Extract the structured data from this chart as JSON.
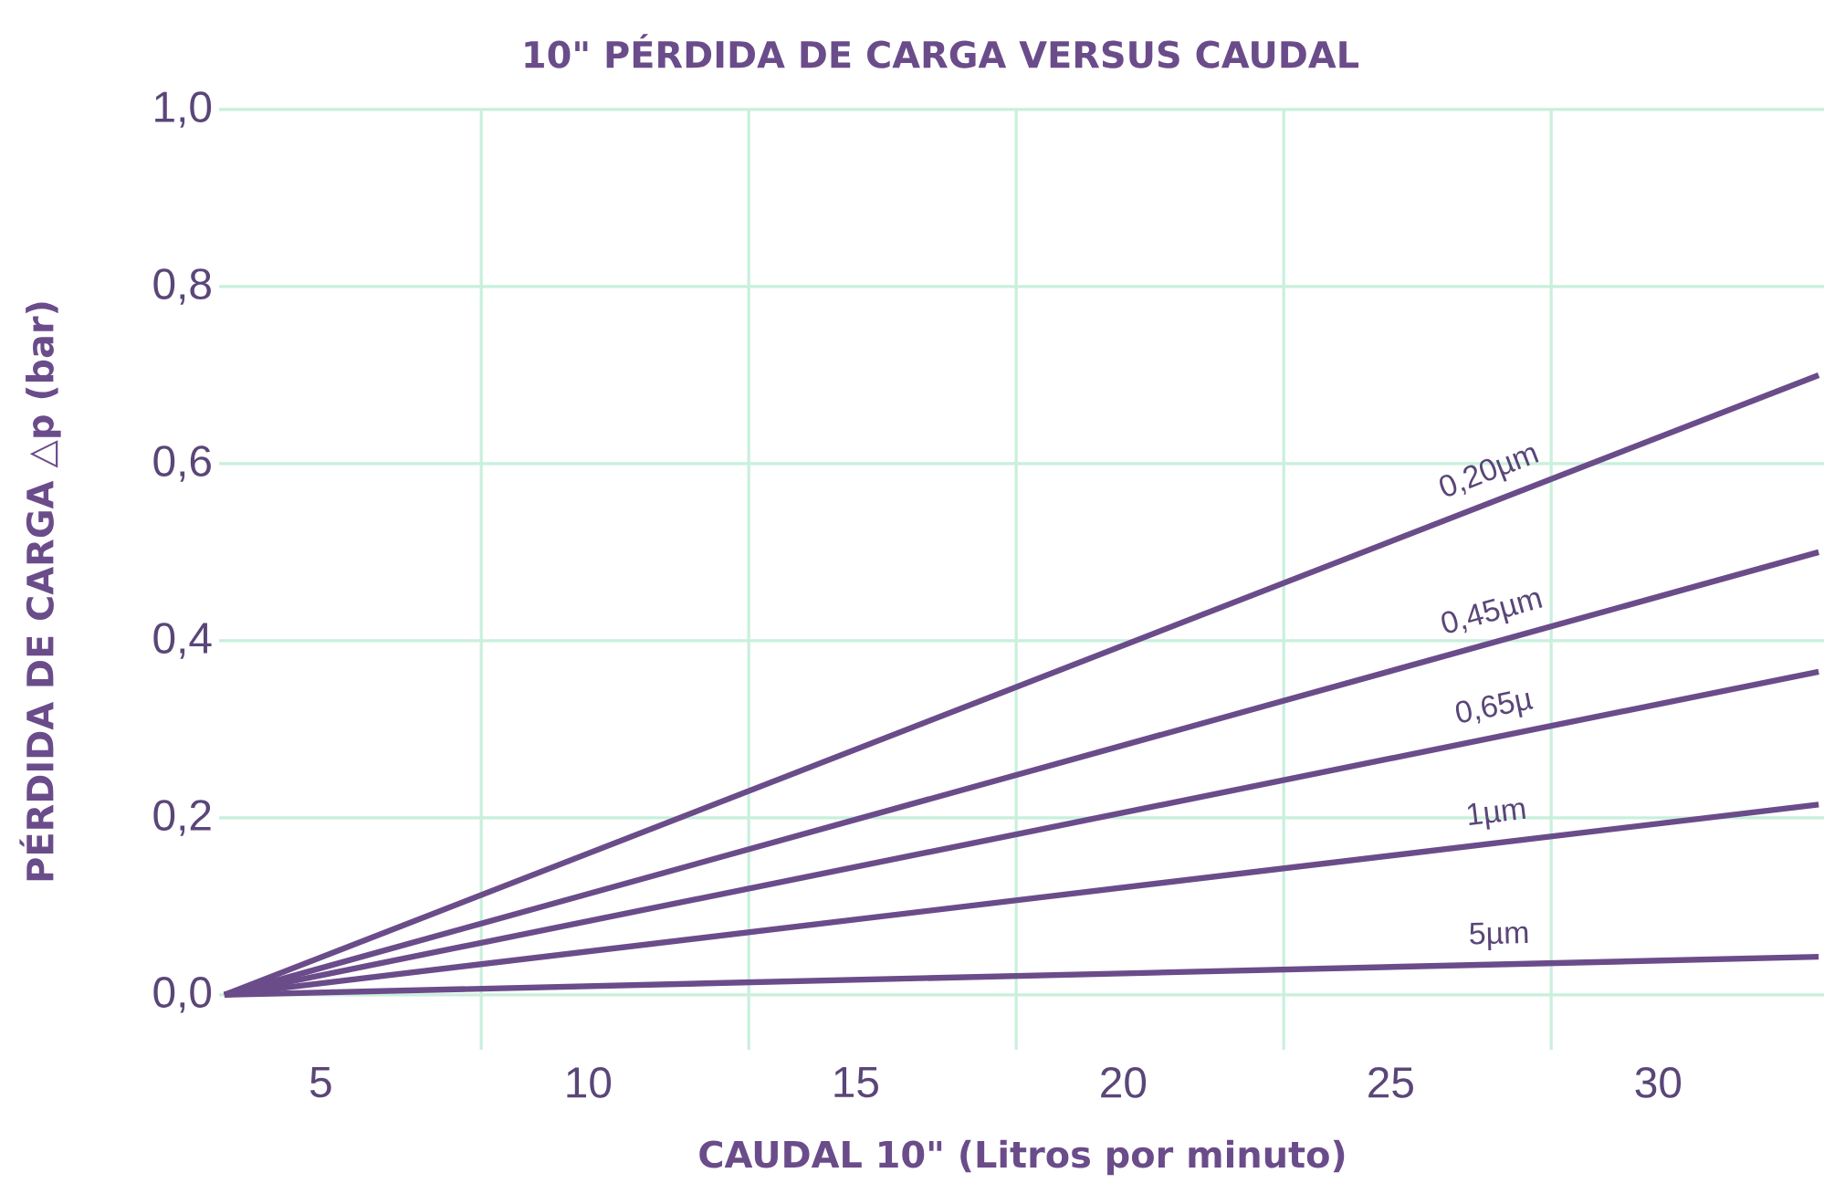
{
  "chart_data": {
    "type": "line",
    "title": "10\" PÉRDIDA DE CARGA VERSUS CAUDAL",
    "xlabel": "CAUDAL 10\" (Litros por minuto)",
    "ylabel": "PÉRDIDA DE CARGA △p (bar)",
    "xlim": [
      3.1,
      33.1
    ],
    "ylim": [
      -0.062,
      1.0
    ],
    "xticks": [
      5,
      {
        "value": 8,
        "label": null
      },
      10,
      {
        "value": 13,
        "label": null
      },
      15,
      {
        "value": 18,
        "label": null
      },
      20,
      {
        "value": 23,
        "label": null
      },
      25,
      {
        "value": 28,
        "label": null
      },
      30
    ],
    "yticks": [
      {
        "value": 0,
        "label": "0,0"
      },
      {
        "value": 0.2,
        "label": "0,2"
      },
      {
        "value": 0.4,
        "label": "0,4"
      },
      {
        "value": 0.6,
        "label": "0,6"
      },
      {
        "value": 0.8,
        "label": "0,8"
      },
      {
        "value": 1.0,
        "label": "1,0"
      }
    ],
    "x": [
      3.2,
      33.0
    ],
    "grid": true,
    "legend": false,
    "line_style": "solid",
    "marker": "none",
    "series": [
      {
        "name": "0,20µm",
        "color": "#6b4c8a",
        "values": [
          0,
          0.7
        ]
      },
      {
        "name": "0,45µm",
        "color": "#6b4c8a",
        "values": [
          0,
          0.5
        ]
      },
      {
        "name": "0,65µ",
        "color": "#6b4c8a",
        "values": [
          0,
          0.365
        ]
      },
      {
        "name": "1µm",
        "color": "#6b4c8a",
        "values": [
          0,
          0.215
        ]
      },
      {
        "name": "5µm",
        "color": "#6b4c8a",
        "values": [
          0,
          0.043
        ]
      }
    ]
  }
}
